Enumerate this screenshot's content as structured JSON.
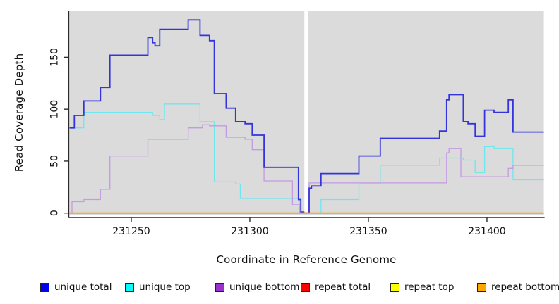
{
  "chart_data": {
    "type": "line",
    "step": true,
    "title": "",
    "xlabel": "Coordinate in Reference Genome",
    "ylabel": "Read Coverage Depth",
    "xlim": [
      231224,
      231424
    ],
    "ylim": [
      0,
      195
    ],
    "x_ticks": [
      231250,
      231300,
      231350,
      231400
    ],
    "y_ticks": [
      0,
      50,
      100,
      150
    ],
    "grid": false,
    "plot_bg_color": "#dbdbdb",
    "axis_color": "#2a2a2a",
    "gap": {
      "x_start": 231323,
      "x_end": 231324.7,
      "color": "#ffffff"
    },
    "series": [
      {
        "name": "repeat total",
        "color": "#e80000",
        "width": 1.0,
        "z": 0,
        "points": [
          [
            231224,
            0
          ],
          [
            231424,
            0
          ]
        ]
      },
      {
        "name": "repeat top",
        "color": "#ffff00",
        "width": 1.0,
        "z": 1,
        "points": [
          [
            231224,
            0
          ],
          [
            231424,
            0
          ]
        ]
      },
      {
        "name": "unique top",
        "color": "#6fe6ee",
        "width": 1.3,
        "z": 2,
        "points": [
          [
            231224,
            82
          ],
          [
            231230,
            97
          ],
          [
            231259,
            94
          ],
          [
            231262,
            90
          ],
          [
            231264,
            105
          ],
          [
            231279,
            88
          ],
          [
            231285,
            30
          ],
          [
            231294,
            28
          ],
          [
            231296,
            14
          ],
          [
            231321,
            0
          ],
          [
            231330,
            13
          ],
          [
            231346,
            28
          ],
          [
            231355,
            46
          ],
          [
            231380,
            53
          ],
          [
            231390,
            51
          ],
          [
            231395,
            39
          ],
          [
            231399,
            64
          ],
          [
            231403,
            62
          ],
          [
            231411,
            32
          ],
          [
            231424,
            32
          ]
        ]
      },
      {
        "name": "unique bottom",
        "color": "#c49ae3",
        "width": 1.3,
        "z": 3,
        "points": [
          [
            231224,
            0
          ],
          [
            231225,
            11
          ],
          [
            231230,
            13
          ],
          [
            231237,
            23
          ],
          [
            231241,
            55
          ],
          [
            231257,
            71
          ],
          [
            231274,
            82
          ],
          [
            231280,
            85
          ],
          [
            231283,
            84
          ],
          [
            231290,
            73
          ],
          [
            231298,
            71
          ],
          [
            231301,
            61
          ],
          [
            231306,
            31
          ],
          [
            231318,
            8
          ],
          [
            231321,
            0
          ],
          [
            231325,
            29
          ],
          [
            231383,
            58
          ],
          [
            231384,
            62
          ],
          [
            231389,
            35
          ],
          [
            231409,
            43
          ],
          [
            231411,
            46
          ],
          [
            231424,
            46
          ]
        ]
      },
      {
        "name": "unique total",
        "color": "#3434dd",
        "width": 1.8,
        "z": 4,
        "points": [
          [
            231224,
            82
          ],
          [
            231226,
            94
          ],
          [
            231230,
            108
          ],
          [
            231237,
            121
          ],
          [
            231241,
            152
          ],
          [
            231257,
            169
          ],
          [
            231259,
            164
          ],
          [
            231260,
            161
          ],
          [
            231262,
            177
          ],
          [
            231274,
            186
          ],
          [
            231279,
            171
          ],
          [
            231283,
            166
          ],
          [
            231285,
            115
          ],
          [
            231290,
            101
          ],
          [
            231294,
            88
          ],
          [
            231298,
            86
          ],
          [
            231301,
            75
          ],
          [
            231306,
            44
          ],
          [
            231320.5,
            13
          ],
          [
            231321.5,
            1
          ],
          [
            231325,
            24
          ],
          [
            231326,
            26
          ],
          [
            231330,
            38
          ],
          [
            231346,
            55
          ],
          [
            231355,
            72
          ],
          [
            231380,
            79
          ],
          [
            231383,
            109
          ],
          [
            231384,
            114
          ],
          [
            231390,
            88
          ],
          [
            231392,
            86
          ],
          [
            231395,
            74
          ],
          [
            231399,
            99
          ],
          [
            231403,
            97
          ],
          [
            231409,
            109
          ],
          [
            231411,
            78
          ],
          [
            231424,
            78
          ]
        ]
      },
      {
        "name": "repeat bottom",
        "color": "#ff9f12",
        "width": 2.0,
        "z": 5,
        "points": [
          [
            231224,
            0
          ],
          [
            231424,
            0
          ]
        ]
      }
    ],
    "legend": [
      {
        "label": "unique total",
        "fill": "#0000f0"
      },
      {
        "label": "unique top",
        "fill": "#00ffff"
      },
      {
        "label": "unique bottom",
        "fill": "#9932cc"
      },
      {
        "label": "repeat total",
        "fill": "#ff0000"
      },
      {
        "label": "repeat top",
        "fill": "#ffff00"
      },
      {
        "label": "repeat bottom",
        "fill": "#ffa500"
      }
    ],
    "legend_position": "bottom"
  }
}
